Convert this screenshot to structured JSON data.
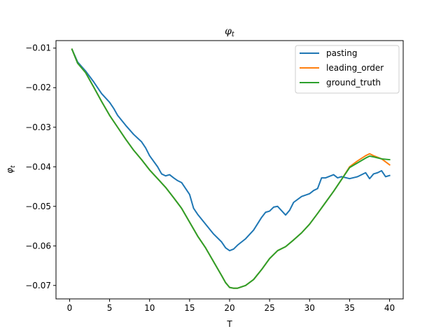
{
  "chart_data": {
    "type": "line",
    "title": "φ_t",
    "title_main": "φ",
    "title_sub": "t",
    "xlabel": "T",
    "ylabel": "φ_t",
    "ylabel_main": "φ",
    "ylabel_sub": "t",
    "xlim": [
      -1.7,
      41.7
    ],
    "ylim": [
      -0.0734,
      -0.0081
    ],
    "xticks": [
      0,
      5,
      10,
      15,
      20,
      25,
      30,
      35,
      40
    ],
    "xtick_labels": [
      "0",
      "5",
      "10",
      "15",
      "20",
      "25",
      "30",
      "35",
      "40"
    ],
    "yticks": [
      -0.07,
      -0.06,
      -0.05,
      -0.04,
      -0.03,
      -0.02,
      -0.01
    ],
    "ytick_labels": [
      "−0.07",
      "−0.06",
      "−0.05",
      "−0.04",
      "−0.03",
      "−0.02",
      "−0.01"
    ],
    "grid": false,
    "legend_position": "top-right",
    "series": [
      {
        "name": "pasting",
        "color": "#1f77b4",
        "x": [
          0.3,
          1,
          2,
          3,
          4,
          5,
          5.5,
          6,
          7,
          8,
          9,
          9.5,
          10,
          11,
          11.5,
          12,
          12.5,
          13,
          13.5,
          14,
          15,
          15.5,
          16,
          17,
          18,
          19,
          19.5,
          20,
          20.5,
          21,
          21.5,
          22,
          23,
          24,
          24.5,
          25,
          25.5,
          26,
          27,
          27.5,
          28,
          29,
          30,
          30.5,
          31,
          31.5,
          32,
          33,
          33.5,
          34,
          35,
          36,
          37,
          37.5,
          38,
          38.5,
          39,
          39.5,
          40
        ],
        "y": [
          -0.0103,
          -0.0135,
          -0.0158,
          -0.0185,
          -0.0215,
          -0.0237,
          -0.0252,
          -0.027,
          -0.0295,
          -0.0318,
          -0.0337,
          -0.0352,
          -0.0372,
          -0.04,
          -0.0418,
          -0.0423,
          -0.042,
          -0.0428,
          -0.0435,
          -0.044,
          -0.047,
          -0.0505,
          -0.052,
          -0.0545,
          -0.057,
          -0.059,
          -0.0605,
          -0.0612,
          -0.0608,
          -0.0598,
          -0.059,
          -0.0582,
          -0.056,
          -0.0528,
          -0.0515,
          -0.0512,
          -0.0502,
          -0.05,
          -0.0522,
          -0.051,
          -0.049,
          -0.0475,
          -0.0468,
          -0.046,
          -0.0455,
          -0.0428,
          -0.0428,
          -0.042,
          -0.0428,
          -0.0425,
          -0.043,
          -0.0425,
          -0.0415,
          -0.043,
          -0.0418,
          -0.0415,
          -0.041,
          -0.0425,
          -0.0422
        ]
      },
      {
        "name": "leading_order",
        "color": "#ff7f0e",
        "x": [
          0.3,
          1,
          2,
          3,
          4,
          5,
          6,
          7,
          8,
          9,
          10,
          11,
          12,
          13,
          14,
          15,
          16,
          17,
          18,
          19,
          19.5,
          20,
          20.5,
          21,
          22,
          23,
          24,
          25,
          26,
          27,
          28,
          29,
          30,
          31,
          32,
          33,
          34,
          35,
          36,
          37,
          37.5,
          38,
          39,
          40
        ],
        "y": [
          -0.0103,
          -0.0138,
          -0.0162,
          -0.0198,
          -0.0235,
          -0.027,
          -0.03,
          -0.033,
          -0.0358,
          -0.0382,
          -0.0408,
          -0.043,
          -0.0452,
          -0.0478,
          -0.0505,
          -0.054,
          -0.0575,
          -0.0605,
          -0.064,
          -0.0675,
          -0.0693,
          -0.0705,
          -0.0707,
          -0.0707,
          -0.07,
          -0.0685,
          -0.066,
          -0.0632,
          -0.0612,
          -0.0602,
          -0.0585,
          -0.0567,
          -0.0545,
          -0.0518,
          -0.049,
          -0.0462,
          -0.0432,
          -0.04,
          -0.0385,
          -0.0372,
          -0.0367,
          -0.0372,
          -0.038,
          -0.0395
        ]
      },
      {
        "name": "ground_truth",
        "color": "#2ca02c",
        "x": [
          0.3,
          1,
          2,
          3,
          4,
          5,
          6,
          7,
          8,
          9,
          10,
          11,
          12,
          13,
          14,
          15,
          16,
          17,
          18,
          19,
          19.5,
          20,
          20.5,
          21,
          22,
          23,
          24,
          25,
          26,
          27,
          28,
          29,
          30,
          31,
          32,
          33,
          34,
          35,
          36,
          37,
          37.5,
          38,
          39,
          40
        ],
        "y": [
          -0.0103,
          -0.0138,
          -0.0162,
          -0.0198,
          -0.0235,
          -0.027,
          -0.03,
          -0.033,
          -0.0358,
          -0.0382,
          -0.0408,
          -0.043,
          -0.0452,
          -0.0478,
          -0.0505,
          -0.054,
          -0.0575,
          -0.0605,
          -0.064,
          -0.0675,
          -0.0693,
          -0.0705,
          -0.0707,
          -0.0707,
          -0.07,
          -0.0685,
          -0.066,
          -0.0632,
          -0.0612,
          -0.0602,
          -0.0585,
          -0.0567,
          -0.0545,
          -0.0518,
          -0.049,
          -0.0462,
          -0.0432,
          -0.0402,
          -0.039,
          -0.0378,
          -0.0373,
          -0.0375,
          -0.038,
          -0.0382
        ]
      }
    ]
  }
}
